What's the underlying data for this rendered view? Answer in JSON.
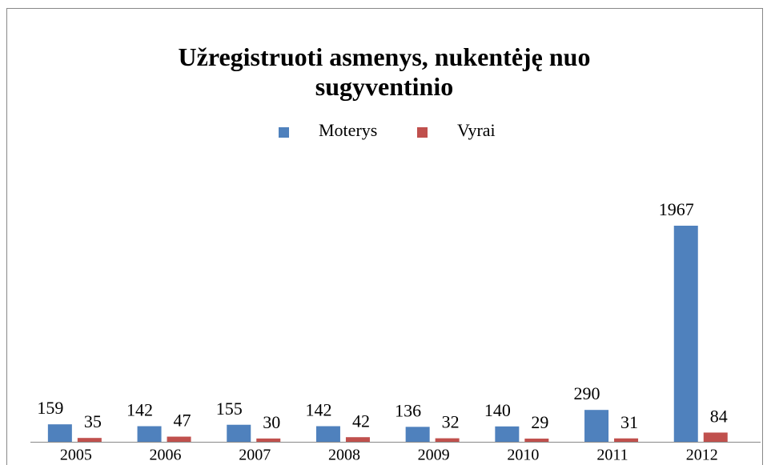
{
  "chart_data": {
    "type": "bar",
    "title": "Užregistruoti asmenys, nukentėję nuo sugyventinio",
    "categories": [
      "2005",
      "2006",
      "2007",
      "2008",
      "2009",
      "2010",
      "2011",
      "2012"
    ],
    "series": [
      {
        "name": "Moterys",
        "color": "#4f81bd",
        "values": [
          159,
          142,
          155,
          142,
          136,
          140,
          290,
          1967
        ]
      },
      {
        "name": "Vyrai",
        "color": "#c0504d",
        "values": [
          35,
          47,
          30,
          42,
          32,
          29,
          31,
          84
        ]
      }
    ],
    "legend": "top"
  }
}
